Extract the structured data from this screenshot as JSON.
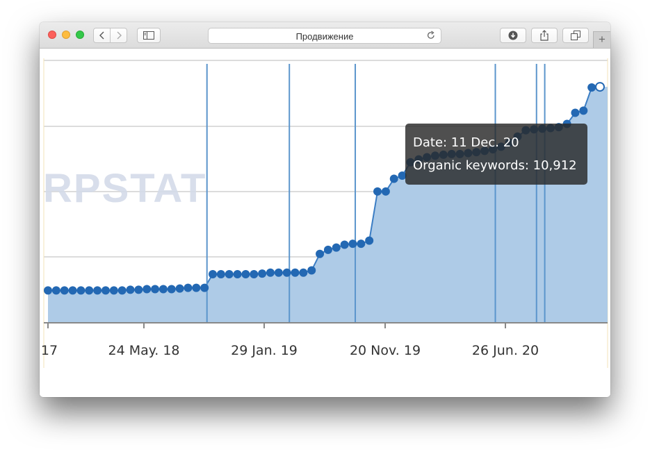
{
  "window": {
    "title": "Продвижение",
    "toolbar_icons": [
      "back-icon",
      "forward-icon",
      "sidebar-icon",
      "reload-icon",
      "download-icon",
      "share-icon",
      "tabs-icon"
    ],
    "new_tab_label": "+"
  },
  "watermark": "RPSTAT",
  "tooltip": {
    "date_line": "Date: 11 Dec. 20",
    "keywords_line": "Organic keywords: 10,912"
  },
  "chart_data": {
    "type": "area",
    "title": "",
    "xlabel": "",
    "ylabel": "",
    "x_tick_labels": [
      "17",
      "24 May. 18",
      "29 Jan. 19",
      "20 Nov. 19",
      "26 Jun. 20"
    ],
    "grid": true,
    "colors": {
      "fill": "#aecbe7",
      "line": "#3b7dc4",
      "point": "#2368b3",
      "annotation": "#5b95cc"
    },
    "annotation_points": [
      19,
      29,
      37,
      54,
      59,
      60
    ],
    "series": [
      {
        "values": [
          100,
          100,
          100,
          100,
          100,
          100,
          100,
          100,
          100,
          100,
          102,
          102,
          104,
          104,
          104,
          104,
          106,
          108,
          108,
          108,
          151,
          151,
          151,
          151,
          151,
          151,
          153,
          156,
          156,
          156,
          156,
          156,
          163,
          215,
          228,
          235,
          244,
          247,
          247,
          257,
          412,
          412,
          452,
          462,
          504,
          513,
          520,
          525,
          528,
          530,
          530,
          533,
          536,
          540,
          545,
          553,
          566,
          585,
          605,
          608,
          610,
          612,
          615,
          625,
          660,
          667,
          740,
          742
        ]
      }
    ]
  }
}
